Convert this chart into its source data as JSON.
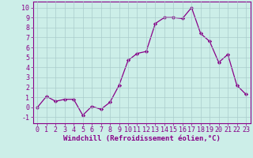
{
  "x": [
    0,
    1,
    2,
    3,
    4,
    5,
    6,
    7,
    8,
    9,
    10,
    11,
    12,
    13,
    14,
    15,
    16,
    17,
    18,
    19,
    20,
    21,
    22,
    23
  ],
  "y": [
    0.0,
    1.1,
    0.6,
    0.8,
    0.8,
    -0.8,
    0.1,
    -0.2,
    0.5,
    2.2,
    4.7,
    5.4,
    5.6,
    8.4,
    9.0,
    9.0,
    8.9,
    10.0,
    7.4,
    6.6,
    4.5,
    5.3,
    2.2,
    1.3
  ],
  "line_color": "#880088",
  "marker": "D",
  "markersize": 2.2,
  "linewidth": 0.9,
  "xlabel": "Windchill (Refroidissement éolien,°C)",
  "xlabel_fontsize": 6.5,
  "ylabel_ticks": [
    -1,
    0,
    1,
    2,
    3,
    4,
    5,
    6,
    7,
    8,
    9,
    10
  ],
  "xlim": [
    -0.5,
    23.5
  ],
  "ylim": [
    -1.6,
    10.6
  ],
  "bg_color": "#cceee8",
  "plot_bg_color": "#cceee8",
  "grid_color": "#aacccc",
  "tick_fontsize": 6.0,
  "tick_color": "#880088",
  "spine_color": "#880088"
}
